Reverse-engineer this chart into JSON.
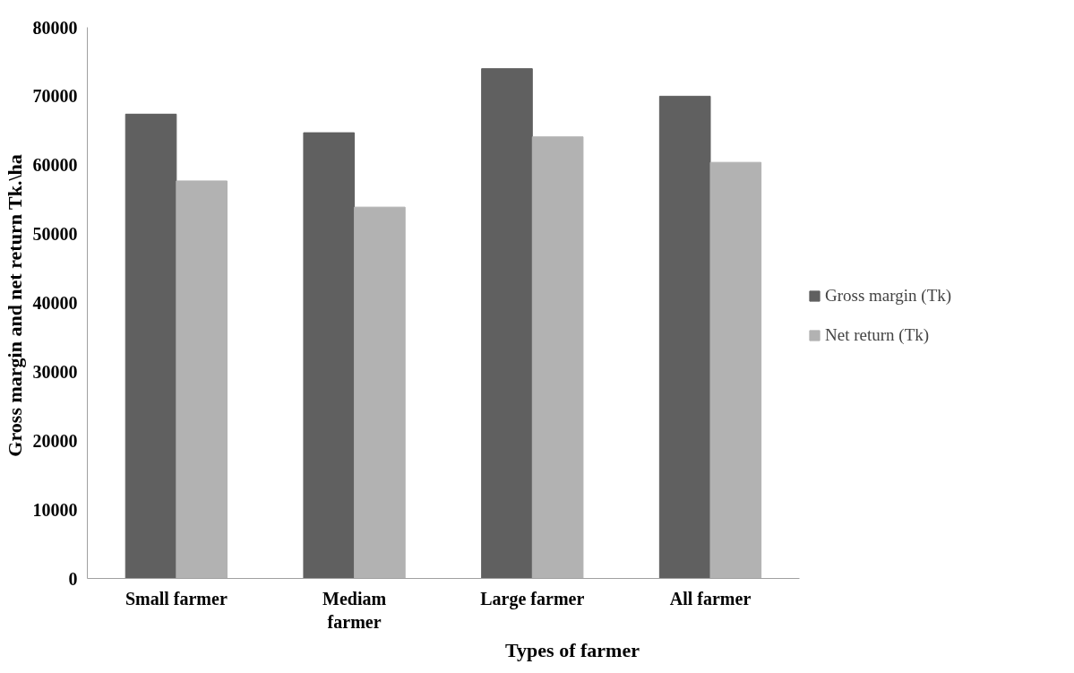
{
  "chart_data": {
    "type": "bar",
    "xlabel": "Types of farmer",
    "ylabel": "Gross  margin and net return Tk.\\ha",
    "categories": [
      "Small farmer",
      "Mediam farmer",
      "Large farmer",
      "All farmer"
    ],
    "series": [
      {
        "name": "Gross margin (Tk)",
        "color": "#606060",
        "values": [
          67400,
          64700,
          74000,
          70000
        ]
      },
      {
        "name": "Net return (Tk)",
        "color": "#b2b2b2",
        "values": [
          57700,
          53900,
          64100,
          60400
        ]
      }
    ],
    "ylim": [
      0,
      80000
    ],
    "yticks": [
      0,
      10000,
      20000,
      30000,
      40000,
      50000,
      60000,
      70000,
      80000
    ],
    "grid": false,
    "legend": "right"
  }
}
